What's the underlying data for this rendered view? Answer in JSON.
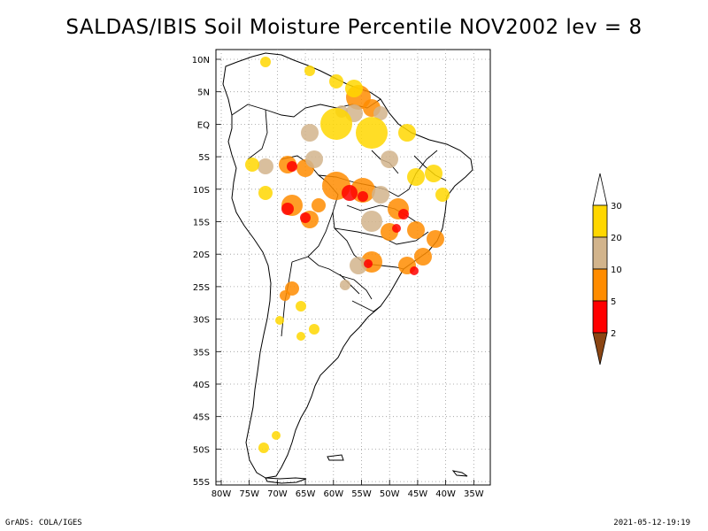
{
  "title": "SALDAS/IBIS Soil Moisture Percentile NOV2002 lev = 8",
  "lat_labels": [
    "10N",
    "5N",
    "EQ",
    "5S",
    "10S",
    "15S",
    "20S",
    "25S",
    "30S",
    "35S",
    "40S",
    "45S",
    "50S",
    "55S"
  ],
  "lon_labels": [
    "80W",
    "75W",
    "70W",
    "65W",
    "60W",
    "55W",
    "50W",
    "45W",
    "40W",
    "35W"
  ],
  "colorbar": {
    "labels": [
      "30",
      "20",
      "10",
      "5",
      "2"
    ],
    "colors": [
      "#ffffff",
      "#ffd700",
      "#d2b48c",
      "#ff8c00",
      "#ff0000",
      "#8b4513"
    ]
  },
  "footer": {
    "left": "GrADS: COLA/IGES",
    "right": "2021-05-12-19:19"
  }
}
